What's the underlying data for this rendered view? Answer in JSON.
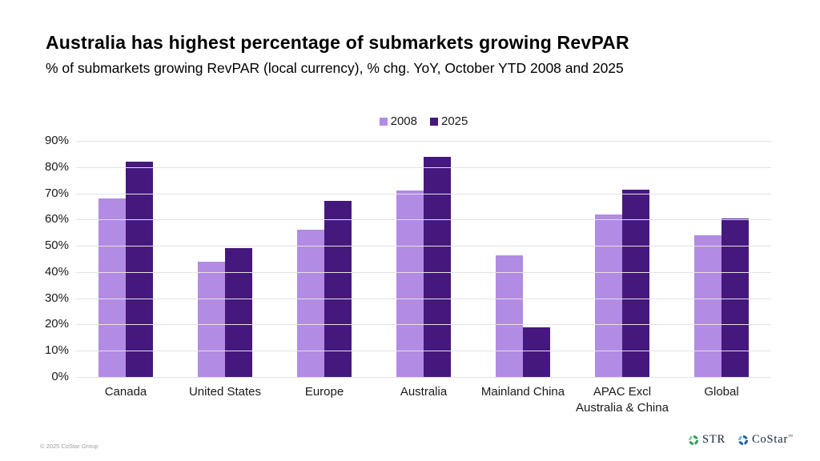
{
  "header": {
    "title": "Australia has highest percentage of submarkets growing RevPAR",
    "subtitle": "% of submarkets growing RevPAR (local currency), % chg. YoY, October YTD 2008 and 2025"
  },
  "chart_data": {
    "type": "bar",
    "title": "Australia has highest percentage of submarkets growing RevPAR",
    "subtitle": "% of submarkets growing RevPAR (local currency), % chg. YoY, October YTD 2008 and 2025",
    "categories": [
      "Canada",
      "United States",
      "Europe",
      "Australia",
      "Mainland China",
      "APAC Excl\nAustralia & China",
      "Global"
    ],
    "series": [
      {
        "name": "2008",
        "color": "#b28be4",
        "values": [
          68,
          44,
          56,
          71,
          46.5,
          62,
          54
        ]
      },
      {
        "name": "2025",
        "color": "#45187d",
        "values": [
          82,
          49,
          67,
          84,
          19,
          71.5,
          60.5
        ]
      }
    ],
    "xlabel": "",
    "ylabel": "",
    "ylim": [
      0,
      90
    ],
    "y_tick_step": 10,
    "y_tick_suffix": "%",
    "grid": "horizontal",
    "legend_position": "top-center"
  },
  "footer": {
    "copyright": "© 2025 CoStar Group",
    "logos": [
      {
        "name": "STR",
        "mark": "",
        "icon": "pinwheel-icon",
        "color": "#2e9e58",
        "light_color": "#8fcba6"
      },
      {
        "name": "CoStar",
        "mark": "™",
        "icon": "pinwheel-icon",
        "color": "#1d5ca5",
        "light_color": "#7fb3df"
      }
    ]
  }
}
